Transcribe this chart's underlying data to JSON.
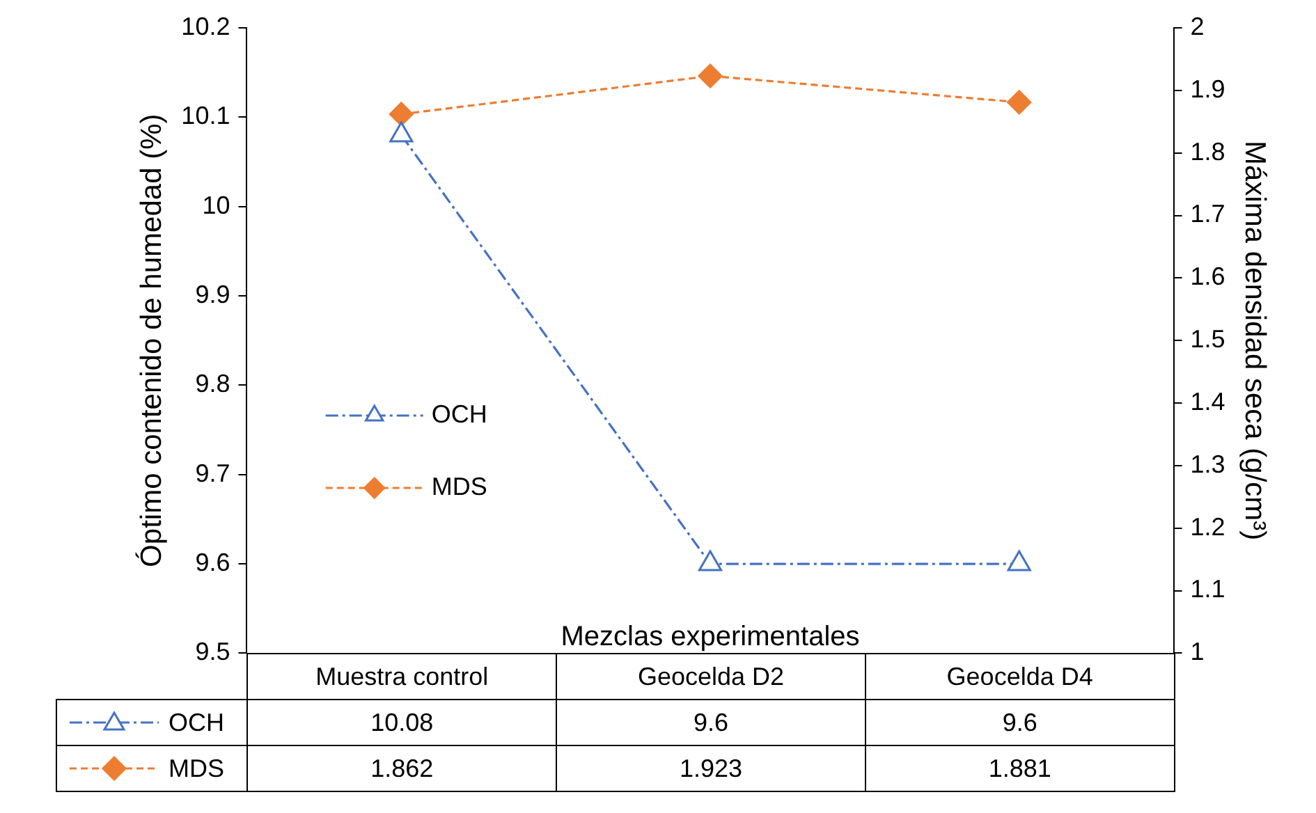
{
  "chart_data": {
    "type": "line",
    "xlabel": "Mezclas experimentales",
    "ylabel": "Óptimo contenido de humedad (%)",
    "y2label": "Máxima densidad seca (g/cm³)",
    "categories": [
      "Muestra control",
      "Geocelda D2",
      "Geocelda D4"
    ],
    "series": [
      {
        "name": "OCH",
        "color": "#4472c4",
        "values": [
          10.08,
          9.6,
          9.6
        ],
        "marker": "triangle",
        "line_style": "dashdot"
      },
      {
        "name": "MDS",
        "color": "#ed7d31",
        "values": [
          1.862,
          1.923,
          1.881
        ],
        "axis": "y2",
        "marker": "diamond",
        "line_style": "dashed"
      }
    ],
    "ylim": [
      9.5,
      10.2
    ],
    "yticks": [
      9.5,
      9.6,
      9.7,
      9.8,
      9.9,
      10,
      10.1,
      10.2
    ],
    "y2lim": [
      1,
      2
    ],
    "y2ticks": [
      1,
      1.1,
      1.2,
      1.3,
      1.4,
      1.5,
      1.6,
      1.7,
      1.8,
      1.9,
      2
    ],
    "grid": false,
    "legend": "left",
    "data_labels": true
  }
}
